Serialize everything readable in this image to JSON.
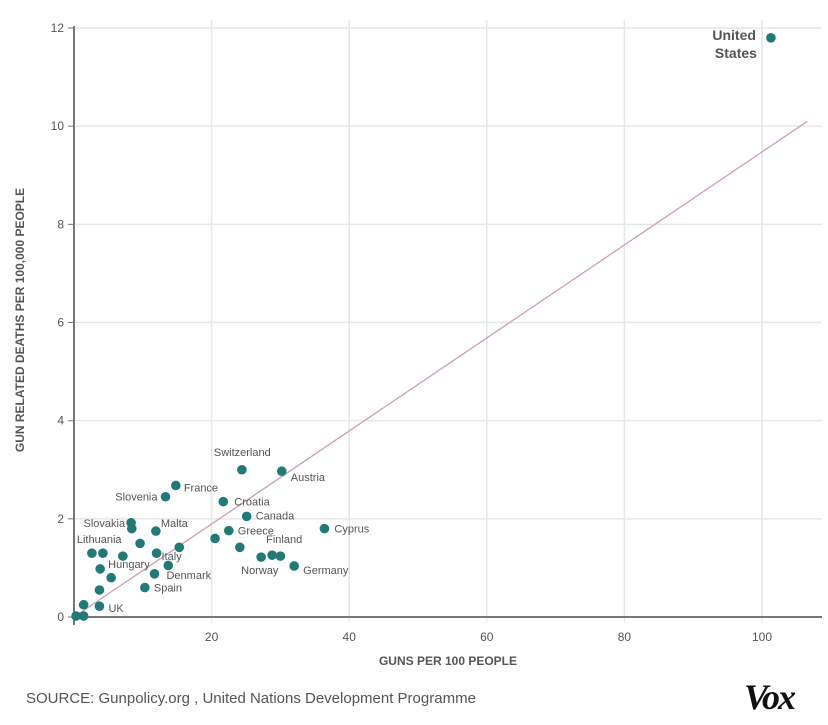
{
  "chart_data": {
    "type": "scatter",
    "title": "",
    "xlabel": "GUNS PER 100 PEOPLE",
    "ylabel": "GUN RELATED DEATHS PER 100,000 PEOPLE",
    "xlim": [
      0,
      108
    ],
    "ylim": [
      0,
      12
    ],
    "xticks": [
      20,
      40,
      60,
      80,
      100
    ],
    "yticks": [
      0,
      2,
      4,
      6,
      8,
      10,
      12
    ],
    "grid": true,
    "colors": {
      "point": "#1f7a78",
      "trend": "#c9a0b8",
      "grid": "#e6e6e6",
      "axis": "#777777"
    },
    "trendline": {
      "x": [
        0,
        106.6
      ],
      "y": [
        0,
        10.1
      ]
    },
    "points": [
      {
        "name": "United States",
        "x": 101.3,
        "y": 11.8,
        "label": true,
        "highlight": true
      },
      {
        "name": "Switzerland",
        "x": 24.4,
        "y": 3.0,
        "label": true
      },
      {
        "name": "Austria",
        "x": 30.2,
        "y": 2.97,
        "label": true
      },
      {
        "name": "France",
        "x": 14.8,
        "y": 2.68,
        "label": true
      },
      {
        "name": "Slovenia",
        "x": 13.3,
        "y": 2.45,
        "label": true
      },
      {
        "name": "Croatia",
        "x": 21.7,
        "y": 2.35,
        "label": true
      },
      {
        "name": "Canada",
        "x": 25.1,
        "y": 2.05,
        "label": true
      },
      {
        "name": "Slovakia",
        "x": 8.3,
        "y": 1.92,
        "label": true
      },
      {
        "name": "",
        "x": 8.4,
        "y": 1.8,
        "label": false
      },
      {
        "name": "Malta",
        "x": 11.9,
        "y": 1.75,
        "label": true
      },
      {
        "name": "Greece",
        "x": 22.5,
        "y": 1.76,
        "label": true
      },
      {
        "name": "Cyprus",
        "x": 36.4,
        "y": 1.8,
        "label": true
      },
      {
        "name": "",
        "x": 20.5,
        "y": 1.6,
        "label": false
      },
      {
        "name": "",
        "x": 9.6,
        "y": 1.5,
        "label": false
      },
      {
        "name": "",
        "x": 15.3,
        "y": 1.42,
        "label": false
      },
      {
        "name": "",
        "x": 24.1,
        "y": 1.42,
        "label": false
      },
      {
        "name": "Lithuania",
        "x": 2.6,
        "y": 1.3,
        "label": true
      },
      {
        "name": "",
        "x": 4.2,
        "y": 1.3,
        "label": false
      },
      {
        "name": "",
        "x": 7.1,
        "y": 1.24,
        "label": false
      },
      {
        "name": "Italy",
        "x": 12.0,
        "y": 1.3,
        "label": true
      },
      {
        "name": "Finland",
        "x": 28.8,
        "y": 1.26,
        "label": true
      },
      {
        "name": "Norway",
        "x": 27.2,
        "y": 1.22,
        "label": true
      },
      {
        "name": "",
        "x": 30.0,
        "y": 1.24,
        "label": false
      },
      {
        "name": "Hungary",
        "x": 3.8,
        "y": 0.98,
        "label": true
      },
      {
        "name": "",
        "x": 13.7,
        "y": 1.05,
        "label": false
      },
      {
        "name": "Germany",
        "x": 32.0,
        "y": 1.04,
        "label": true
      },
      {
        "name": "",
        "x": 5.4,
        "y": 0.8,
        "label": false
      },
      {
        "name": "Denmark",
        "x": 11.7,
        "y": 0.88,
        "label": true
      },
      {
        "name": "Spain",
        "x": 10.3,
        "y": 0.6,
        "label": true
      },
      {
        "name": "",
        "x": 3.7,
        "y": 0.55,
        "label": false
      },
      {
        "name": "",
        "x": 1.4,
        "y": 0.25,
        "label": false
      },
      {
        "name": "UK",
        "x": 3.7,
        "y": 0.22,
        "label": true
      },
      {
        "name": "",
        "x": 0.3,
        "y": 0.02,
        "label": false
      },
      {
        "name": "",
        "x": 1.4,
        "y": 0.02,
        "label": false
      }
    ]
  },
  "footer": {
    "source": "SOURCE: Gunpolicy.org , United Nations Development Programme",
    "logo": "Vox"
  }
}
